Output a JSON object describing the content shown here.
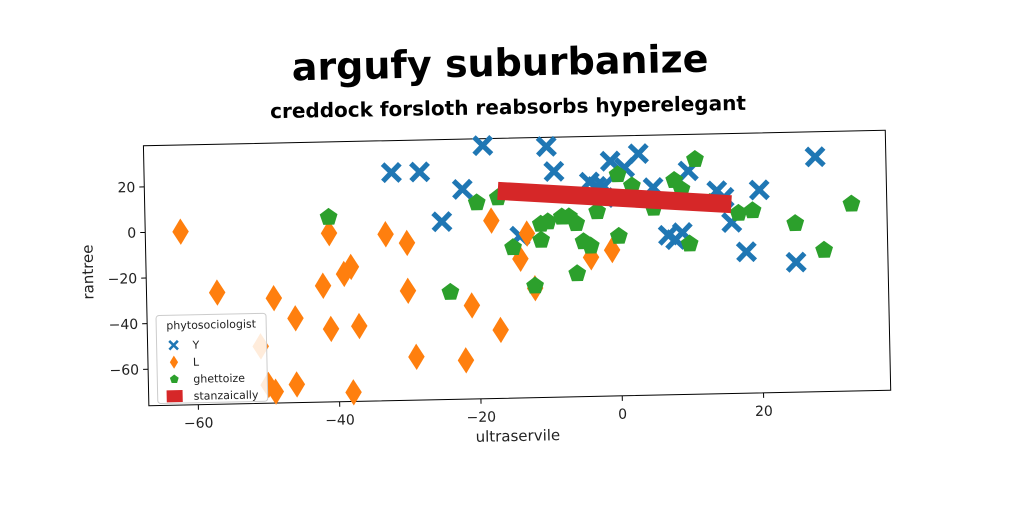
{
  "chart_data": {
    "type": "scatter",
    "title": "argufy suburbanize",
    "subtitle": "creddock forsloth reabsorbs hyperelegant",
    "xlabel": "ultraservile",
    "ylabel": "rantree",
    "xlim": [
      -67,
      38
    ],
    "ylim": [
      -76,
      38
    ],
    "xticks": [
      -60,
      -40,
      -20,
      0,
      20
    ],
    "yticks": [
      -60,
      -40,
      -20,
      0,
      20
    ],
    "grid": false,
    "legend": {
      "title": "phytosociologist",
      "placement": "lower-left"
    },
    "series": [
      {
        "name": "Y",
        "marker": "x",
        "color": "#1f77b4",
        "points": [
          [
            -32,
            24
          ],
          [
            -28,
            24
          ],
          [
            -25,
            2
          ],
          [
            -22,
            16
          ],
          [
            -19,
            35
          ],
          [
            -10,
            34
          ],
          [
            -9,
            23
          ],
          [
            -4,
            18
          ],
          [
            -3,
            16
          ],
          [
            -2,
            16
          ],
          [
            -2,
            11
          ],
          [
            -1,
            27
          ],
          [
            1,
            24
          ],
          [
            3,
            30
          ],
          [
            5,
            15
          ],
          [
            7,
            -6
          ],
          [
            8,
            -8
          ],
          [
            9,
            -5
          ],
          [
            10,
            22
          ],
          [
            14,
            13
          ],
          [
            15,
            10
          ],
          [
            16,
            -1
          ],
          [
            18,
            -14
          ],
          [
            20,
            13
          ],
          [
            25,
            -19
          ],
          [
            28,
            27
          ],
          [
            -14,
            -5
          ]
        ]
      },
      {
        "name": "L",
        "marker": "d",
        "color": "#ff7f0e",
        "points": [
          [
            -62,
            0
          ],
          [
            -57,
            -27
          ],
          [
            -51,
            -51
          ],
          [
            -50,
            -68
          ],
          [
            -49,
            -30
          ],
          [
            -49,
            -71
          ],
          [
            -46,
            -39
          ],
          [
            -46,
            -68
          ],
          [
            -42,
            -25
          ],
          [
            -41,
            -2
          ],
          [
            -41,
            -44
          ],
          [
            -39,
            -20
          ],
          [
            -38,
            -17
          ],
          [
            -38,
            -72
          ],
          [
            -37,
            -43
          ],
          [
            -33,
            -3
          ],
          [
            -30,
            -7
          ],
          [
            -30,
            -28
          ],
          [
            -29,
            -57
          ],
          [
            -22,
            -59
          ],
          [
            -21,
            -35
          ],
          [
            -18,
            2
          ],
          [
            -17,
            -46
          ],
          [
            -14,
            -15
          ],
          [
            -13,
            -4
          ],
          [
            -12,
            -28
          ],
          [
            -4,
            -15
          ],
          [
            -1,
            -12
          ]
        ]
      },
      {
        "name": "ghettoize",
        "marker": "p",
        "color": "#2ca02c",
        "points": [
          [
            -41,
            5
          ],
          [
            -24,
            -29
          ],
          [
            -20,
            10
          ],
          [
            -17,
            12
          ],
          [
            -15,
            -10
          ],
          [
            -12,
            -27
          ],
          [
            -11,
            0
          ],
          [
            -11,
            -7
          ],
          [
            -10,
            1
          ],
          [
            -8,
            3
          ],
          [
            -7,
            3
          ],
          [
            -6,
            -22
          ],
          [
            -6,
            0
          ],
          [
            -5,
            -8
          ],
          [
            -4,
            -10
          ],
          [
            -3,
            5
          ],
          [
            -2,
            11
          ],
          [
            0,
            21
          ],
          [
            0,
            -6
          ],
          [
            2,
            16
          ],
          [
            5,
            6
          ],
          [
            8,
            18
          ],
          [
            9,
            14
          ],
          [
            10,
            -10
          ],
          [
            11,
            27
          ],
          [
            13,
            8
          ],
          [
            17,
            3
          ],
          [
            19,
            4
          ],
          [
            25,
            -2
          ],
          [
            29,
            -14
          ],
          [
            33,
            6
          ]
        ]
      },
      {
        "name": "stanzaically",
        "type": "line",
        "color": "#d62728",
        "points": [
          [
            -17,
            15
          ],
          [
            16,
            7
          ]
        ]
      }
    ]
  }
}
